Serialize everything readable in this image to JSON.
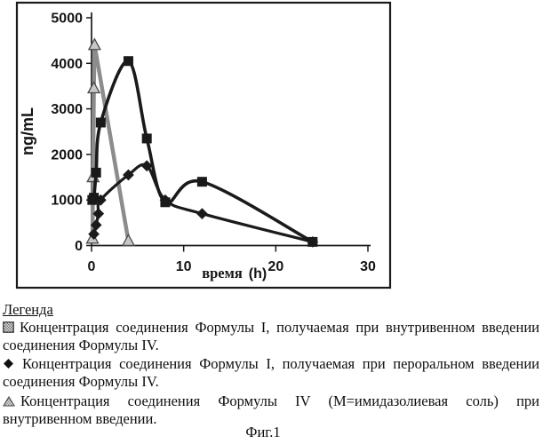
{
  "figure": {
    "caption": "Фиг.1"
  },
  "legend": {
    "title": "Легенда",
    "items": [
      {
        "marker": "shaded-square",
        "text": "Концентрация соединения Формулы I, получаемая при внутривенном введении соединения Формулы IV."
      },
      {
        "marker": "black-diamond",
        "text": "Концентрация соединения Формулы I, получаемая при пероральном введении соединения Формулы IV."
      },
      {
        "marker": "shaded-triangle",
        "text": "Концентрация соединения Формулы IV (М=имидазолиевая соль) при внутривенном введении."
      }
    ]
  },
  "chart_data": {
    "type": "line",
    "title": "",
    "ylabel": "ng/mL",
    "xlabel": "время",
    "xlabel_unit": "(h)",
    "xlim": [
      0,
      30
    ],
    "ylim": [
      0,
      5000
    ],
    "xticks": [
      0,
      10,
      20,
      30
    ],
    "yticks": [
      0,
      1000,
      2000,
      3000,
      4000,
      5000
    ],
    "grid": false,
    "legend_position": "below",
    "axis_color": "#1a1a1a",
    "series": [
      {
        "name": "Концентрация соединения Формулы I, получаемая при внутривенном введении соединения Формулы IV",
        "marker": "square",
        "color": "#1a1a1a",
        "line_width": 3.6,
        "smooth": true,
        "points": [
          [
            0.083,
            1000
          ],
          [
            0.25,
            1050
          ],
          [
            0.5,
            1600
          ],
          [
            1,
            2700
          ],
          [
            4,
            4050
          ],
          [
            6,
            2350
          ],
          [
            8,
            950
          ],
          [
            12,
            1400
          ],
          [
            24,
            80
          ]
        ]
      },
      {
        "name": "Концентрация соединения Формулы I, получаемая при пероральном введении соединения Формулы IV",
        "marker": "diamond",
        "color": "#1a1a1a",
        "line_width": 3.2,
        "smooth": true,
        "points": [
          [
            0.25,
            250
          ],
          [
            0.5,
            450
          ],
          [
            0.75,
            700
          ],
          [
            1,
            1000
          ],
          [
            4,
            1550
          ],
          [
            6,
            1750
          ],
          [
            8,
            1000
          ],
          [
            12,
            700
          ],
          [
            24,
            80
          ]
        ]
      },
      {
        "name": "Концентрация соединения Формулы IV (М=имидазолиевая соль) при внутривенном введении",
        "marker": "triangle",
        "color": "#8c8c8c",
        "line_width": 4.5,
        "smooth": false,
        "points": [
          [
            0.1,
            150
          ],
          [
            0.17,
            1500
          ],
          [
            0.25,
            3450
          ],
          [
            0.33,
            4400
          ],
          [
            4,
            100
          ]
        ]
      }
    ]
  }
}
